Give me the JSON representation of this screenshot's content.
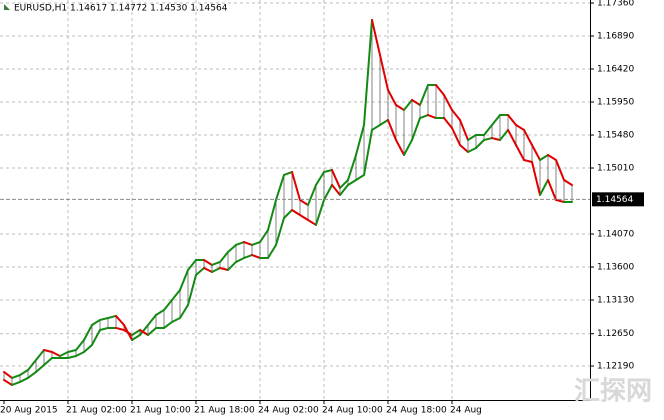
{
  "chart_data": {
    "type": "band-line",
    "title": "EURUSD,H1  1.14617 1.14772 1.14530 1.14564",
    "watermark": "汇探网",
    "up_color": "#138a13",
    "down_color": "#e00000",
    "hatch_color": "#333333",
    "grid": true,
    "xlim": [
      -0.5,
      73.25
    ],
    "xticks": [
      {
        "value": 0,
        "label": "20 Aug 2015"
      },
      {
        "value": 8,
        "label": "21 Aug 02:00"
      },
      {
        "value": 16,
        "label": "21 Aug 10:00"
      },
      {
        "value": 24,
        "label": "21 Aug 18:00"
      },
      {
        "value": 32,
        "label": "24 Aug 02:00"
      },
      {
        "value": 40,
        "label": "24 Aug 10:00"
      },
      {
        "value": 48,
        "label": "24 Aug 18:00"
      },
      {
        "value": 56,
        "label": "24 Aug"
      }
    ],
    "ylim": [
      1.11706,
      1.17403
    ],
    "yticks": [
      {
        "value": 1.1736,
        "label": "1.17360"
      },
      {
        "value": 1.1689,
        "label": "1.16890"
      },
      {
        "value": 1.1642,
        "label": "1.16420"
      },
      {
        "value": 1.1595,
        "label": "1.15950"
      },
      {
        "value": 1.1548,
        "label": "1.15480"
      },
      {
        "value": 1.1501,
        "label": "1.15010"
      },
      {
        "value": 1.1407,
        "label": "1.14070"
      },
      {
        "value": 1.136,
        "label": "1.13600"
      },
      {
        "value": 1.1313,
        "label": "1.13130"
      },
      {
        "value": 1.1265,
        "label": "1.12650"
      },
      {
        "value": 1.1219,
        "label": "1.12190"
      }
    ],
    "current_price": 1.14564,
    "series": [
      {
        "values": [
          1.12105,
          1.1202,
          1.12062,
          1.12133,
          1.12276,
          1.12418,
          1.1239,
          1.12333,
          1.1239,
          1.12418,
          1.12561,
          1.12774,
          1.12846,
          1.12874,
          1.12903,
          1.12774,
          1.12561,
          1.12632,
          1.12774,
          1.12917,
          1.12988,
          1.1313,
          1.13273,
          1.13558,
          1.137,
          1.137,
          1.13629,
          1.13672,
          1.13814,
          1.13914,
          1.13956,
          1.13914,
          1.13956,
          1.14127,
          1.14555,
          1.14911,
          1.14953,
          1.14555,
          1.14483,
          1.14768,
          1.14953,
          1.14982,
          1.14726,
          1.14839,
          1.15195,
          1.15623,
          1.17118,
          1.1662,
          1.16121,
          1.15908,
          1.15836,
          1.15979,
          1.15908,
          1.16192,
          1.16192,
          1.1605,
          1.15836,
          1.15694,
          1.15409,
          1.1548,
          1.1548,
          1.15623,
          1.15765,
          1.15765,
          1.15623,
          1.15552,
          1.15338,
          1.15124,
          1.15195,
          1.15124,
          1.14839,
          1.14768
        ]
      },
      {
        "values": [
          1.11991,
          1.1192,
          1.11963,
          1.1202,
          1.12105,
          1.12205,
          1.12304,
          1.12304,
          1.12304,
          1.12333,
          1.1239,
          1.1249,
          1.12703,
          1.12732,
          1.12732,
          1.12703,
          1.12632,
          1.12703,
          1.12632,
          1.12732,
          1.12732,
          1.12817,
          1.12874,
          1.13059,
          1.13486,
          1.13586,
          1.13529,
          1.13586,
          1.13558,
          1.13672,
          1.13729,
          1.13771,
          1.13729,
          1.13729,
          1.13914,
          1.14298,
          1.14412,
          1.14341,
          1.1427,
          1.14199,
          1.14555,
          1.14768,
          1.14626,
          1.14768,
          1.14839,
          1.14911,
          1.15552,
          1.15623,
          1.15694,
          1.15409,
          1.15195,
          1.15409,
          1.15722,
          1.15765,
          1.15722,
          1.15722,
          1.1558,
          1.15338,
          1.15238,
          1.15295,
          1.15409,
          1.15437,
          1.15409,
          1.15552,
          1.15338,
          1.15124,
          1.15096,
          1.14626,
          1.14839,
          1.14555,
          1.14526,
          1.14526
        ]
      }
    ]
  }
}
